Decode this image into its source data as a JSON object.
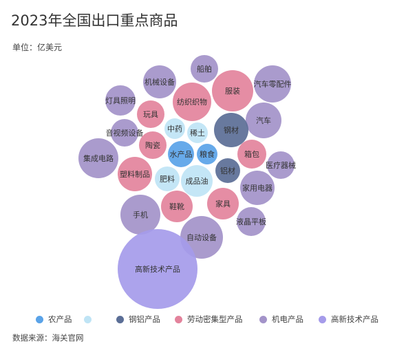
{
  "chart_data": {
    "type": "bubble",
    "title": "2023年全国出口重点商品",
    "subtitle": "单位：亿美元",
    "source": "数据来源：海关官网",
    "legend_position": "bottom",
    "categories": [
      {
        "key": "agri",
        "name": "农产品",
        "color": "#5aa3e8"
      },
      {
        "key": "unlabeled",
        "name": "",
        "color": "#bfe4f5"
      },
      {
        "key": "metal",
        "name": "钢铝产品",
        "color": "#5b6e96"
      },
      {
        "key": "labor",
        "name": "劳动密集型产品",
        "color": "#e3839c"
      },
      {
        "key": "mech",
        "name": "机电产品",
        "color": "#a393c9"
      },
      {
        "key": "tech",
        "name": "高新技术产品",
        "color": "#a59bea"
      }
    ],
    "bubbles": [
      {
        "label": "船舶",
        "category": "mech",
        "size": 20
      },
      {
        "label": "机械设备",
        "category": "mech",
        "size": 24
      },
      {
        "label": "服装",
        "category": "labor",
        "size": 30
      },
      {
        "label": "汽车零配件",
        "category": "mech",
        "size": 27
      },
      {
        "label": "灯具照明",
        "category": "mech",
        "size": 22
      },
      {
        "label": "纺织织物",
        "category": "labor",
        "size": 28
      },
      {
        "label": "玩具",
        "category": "labor",
        "size": 20
      },
      {
        "label": "汽车",
        "category": "mech",
        "size": 26
      },
      {
        "label": "中药",
        "category": "unlabeled",
        "size": 15
      },
      {
        "label": "稀土",
        "category": "unlabeled",
        "size": 15
      },
      {
        "label": "钢材",
        "category": "metal",
        "size": 25
      },
      {
        "label": "音视频设备",
        "category": "mech",
        "size": 20
      },
      {
        "label": "陶瓷",
        "category": "labor",
        "size": 20
      },
      {
        "label": "箱包",
        "category": "labor",
        "size": 21
      },
      {
        "label": "集成电路",
        "category": "mech",
        "size": 29
      },
      {
        "label": "水产品",
        "category": "agri",
        "size": 19
      },
      {
        "label": "粮食",
        "category": "agri",
        "size": 15
      },
      {
        "label": "医疗器械",
        "category": "mech",
        "size": 20
      },
      {
        "label": "铝材",
        "category": "metal",
        "size": 18
      },
      {
        "label": "塑料制品",
        "category": "labor",
        "size": 25
      },
      {
        "label": "肥料",
        "category": "unlabeled",
        "size": 18
      },
      {
        "label": "成品油",
        "category": "unlabeled",
        "size": 23
      },
      {
        "label": "家用电器",
        "category": "mech",
        "size": 25
      },
      {
        "label": "鞋靴",
        "category": "labor",
        "size": 23
      },
      {
        "label": "家具",
        "category": "labor",
        "size": 23
      },
      {
        "label": "手机",
        "category": "mech",
        "size": 29
      },
      {
        "label": "液晶平板",
        "category": "mech",
        "size": 21
      },
      {
        "label": "自动设备",
        "category": "mech",
        "size": 31
      },
      {
        "label": "高新技术产品",
        "category": "tech",
        "size": 58
      }
    ]
  }
}
